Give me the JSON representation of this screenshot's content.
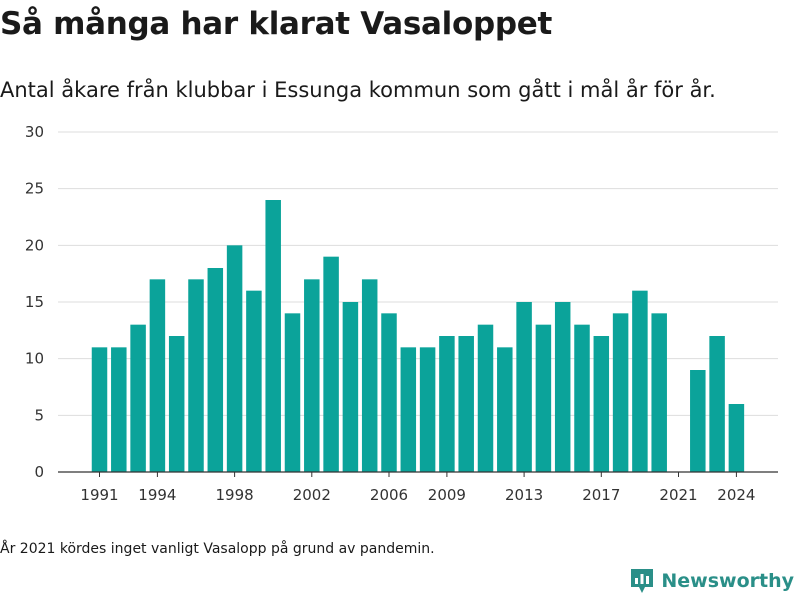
{
  "header": {
    "title": "Så många har klarat Vasaloppet",
    "subtitle": "Antal åkare från klubbar i Essunga kommun som gått i mål år för år."
  },
  "footnote": "År 2021 kördes inget vanligt Vasalopp på grund av pandemin.",
  "brand": {
    "name": "Newsworthy",
    "icon": "newsworthy-logo-icon",
    "color": "#2a8f88"
  },
  "chart_data": {
    "type": "bar",
    "categories": [
      1991,
      1992,
      1993,
      1994,
      1995,
      1996,
      1997,
      1998,
      1999,
      2000,
      2001,
      2002,
      2003,
      2004,
      2005,
      2006,
      2007,
      2008,
      2009,
      2010,
      2011,
      2012,
      2013,
      2014,
      2015,
      2016,
      2017,
      2018,
      2019,
      2020,
      2021,
      2022,
      2023,
      2024
    ],
    "values": [
      11,
      11,
      13,
      17,
      12,
      17,
      18,
      20,
      16,
      24,
      14,
      17,
      19,
      15,
      17,
      14,
      11,
      11,
      12,
      12,
      13,
      11,
      15,
      13,
      15,
      13,
      12,
      14,
      16,
      14,
      null,
      9,
      12,
      6
    ],
    "x_tick_labels": [
      "1991",
      "1994",
      "1998",
      "2002",
      "2006",
      "2009",
      "2013",
      "2017",
      "2021",
      "2024"
    ],
    "y_tick_labels": [
      "0",
      "5",
      "10",
      "15",
      "20",
      "25",
      "30"
    ],
    "ylim": [
      0,
      30
    ],
    "grid": true,
    "bar_color": "#0ba39a",
    "xlabel": "",
    "ylabel": ""
  }
}
